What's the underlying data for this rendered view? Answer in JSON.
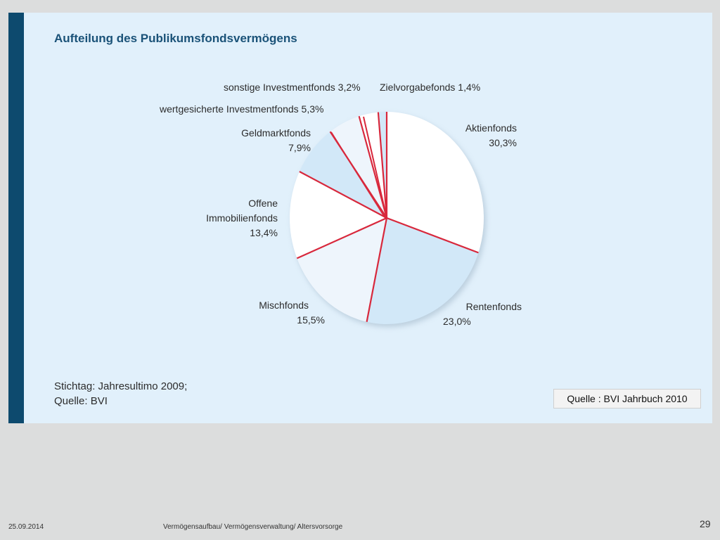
{
  "slide": {
    "footer_date": "25.09.2014",
    "footer_center": "Vermögensaufbau/ Vermögensverwaltung/ Altersvorsorge",
    "page_number": "29",
    "source_box": "Quelle : BVI Jahrbuch 2010"
  },
  "footnote": {
    "line1": "Stichtag: Jahresultimo 2009;",
    "line2": "Quelle: BVI"
  },
  "colors": {
    "sidebar": "#0d4a6e",
    "panel": "#e1f0fb",
    "title": "#1a5278",
    "divider": "#d8283c",
    "slice_white": "#ffffff",
    "slice_light_blue": "#d2e8f8",
    "slice_pale": "#eef5fc"
  },
  "chart_data": {
    "type": "pie",
    "title": "Aufteilung des Publikumsfondsvermögens",
    "slices": [
      {
        "label": "Aktienfonds",
        "value_text": "30,3%",
        "value": 30.3,
        "color": "#ffffff"
      },
      {
        "label": "Rentenfonds",
        "value_text": "23,0%",
        "value": 23.0,
        "color": "#d2e8f8"
      },
      {
        "label": "Mischfonds",
        "value_text": "15,5%",
        "value": 15.5,
        "color": "#eef5fc"
      },
      {
        "label": "Offene Immobilienfonds",
        "label_lines": [
          "Offene",
          "Immobilienfonds"
        ],
        "value_text": "13,4%",
        "value": 13.4,
        "color": "#ffffff"
      },
      {
        "label": "Geldmarktfonds",
        "value_text": "7,9%",
        "value": 7.9,
        "color": "#d2e8f8"
      },
      {
        "label": "wertgesicherte Investmentfonds",
        "value_text": "5,3%",
        "value": 5.3,
        "color": "#eef5fc"
      },
      {
        "label": "sonstige Investmentfonds",
        "value_text": "3,2%",
        "value": 3.2,
        "color": "#ffffff"
      },
      {
        "label": "Zielvorgabefonds",
        "value_text": "1,4%",
        "value": 1.4,
        "color": "#d2e8f8"
      }
    ]
  }
}
